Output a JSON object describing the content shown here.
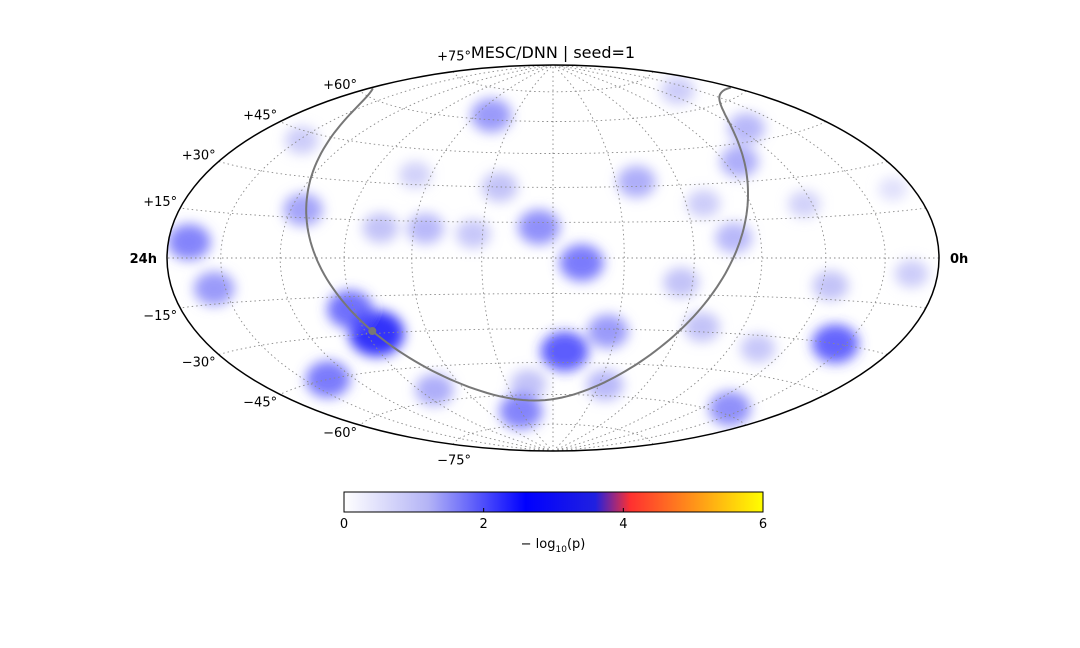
{
  "chart_data": {
    "type": "heatmap",
    "projection": "hammer-aitoff (all-sky)",
    "title": "MESC/DNN | seed=1",
    "ra_labels": {
      "left": "24h",
      "right": "0h"
    },
    "dec_ticks": [
      "+75°",
      "+60°",
      "+45°",
      "+30°",
      "+15°",
      "−15°",
      "−30°",
      "−45°",
      "−60°",
      "−75°"
    ],
    "dec_values": [
      75,
      60,
      45,
      30,
      15,
      -15,
      -30,
      -45,
      -60,
      -75
    ],
    "grid": true,
    "colorbar": {
      "label": "− log10(p)",
      "label_main": "− log",
      "label_sub": "10",
      "label_tail": "(p)",
      "range": [
        0,
        6
      ],
      "ticks": [
        "0",
        "2",
        "4",
        "6"
      ],
      "colormap_stops": [
        {
          "value": 0,
          "color": "#ffffff"
        },
        {
          "value": 1.2,
          "color": "#b4b4f6"
        },
        {
          "value": 2.6,
          "color": "#0000ff"
        },
        {
          "value": 3.6,
          "color": "#2020e0"
        },
        {
          "value": 4.1,
          "color": "#ff3030"
        },
        {
          "value": 6,
          "color": "#ffff00"
        }
      ]
    },
    "galactic_plane_color": "#777777",
    "hotspots": [
      {
        "ra": 168,
        "dec": -2,
        "sig": 1.9
      },
      {
        "ra": 186,
        "dec": 13,
        "sig": 1.7
      },
      {
        "ra": 214,
        "dec": 10,
        "sig": 1.1
      },
      {
        "ra": 174,
        "dec": -40,
        "sig": 2.2
      },
      {
        "ra": 154,
        "dec": -31,
        "sig": 1.6
      },
      {
        "ra": 146,
        "dec": -55,
        "sig": 1.3
      },
      {
        "ra": 196,
        "dec": -55,
        "sig": 1.2
      },
      {
        "ra": 102,
        "dec": 8,
        "sig": 1.3
      },
      {
        "ra": 36,
        "dec": -30,
        "sig": 2.1
      },
      {
        "ra": 56,
        "dec": -10,
        "sig": 1.2
      },
      {
        "ra": 75,
        "dec": -35,
        "sig": 1.1
      },
      {
        "ra": 82,
        "dec": 38,
        "sig": 1.4
      },
      {
        "ra": 55,
        "dec": 50,
        "sig": 1.3
      },
      {
        "ra": 140,
        "dec": 32,
        "sig": 1.4
      },
      {
        "ra": 205,
        "dec": 30,
        "sig": 1.2
      },
      {
        "ra": 248,
        "dec": 34,
        "sig": 0.9
      },
      {
        "ra": 235,
        "dec": 12,
        "sig": 1.3
      },
      {
        "ra": 228,
        "dec": 62,
        "sig": 1.6
      },
      {
        "ra": 265,
        "dec": -30,
        "sig": 2.8
      },
      {
        "ra": 272,
        "dec": -20,
        "sig": 2.0
      },
      {
        "ra": 255,
        "dec": 12,
        "sig": 1.2
      },
      {
        "ra": 294,
        "dec": 18,
        "sig": 1.5
      },
      {
        "ra": 348,
        "dec": 5,
        "sig": 1.8
      },
      {
        "ra": 336,
        "dec": -10,
        "sig": 1.6
      },
      {
        "ra": 316,
        "dec": -45,
        "sig": 1.9
      },
      {
        "ra": 260,
        "dec": -55,
        "sig": 1.4
      },
      {
        "ra": 210,
        "dec": -68,
        "sig": 1.8
      },
      {
        "ra": 125,
        "dec": -10,
        "sig": 1.2
      },
      {
        "ra": 110,
        "dec": -28,
        "sig": 1.2
      },
      {
        "ra": 112,
        "dec": 22,
        "sig": 1.0
      },
      {
        "ra": 64,
        "dec": 20,
        "sig": 0.9
      },
      {
        "ra": 15,
        "dec": -5,
        "sig": 1.0
      },
      {
        "ra": 40,
        "dec": -58,
        "sig": 1.7
      },
      {
        "ra": 45,
        "dec": 68,
        "sig": 1.0
      },
      {
        "ra": 328,
        "dec": 42,
        "sig": 1.0
      },
      {
        "ra": 12,
        "dec": 22,
        "sig": 0.6
      }
    ]
  }
}
